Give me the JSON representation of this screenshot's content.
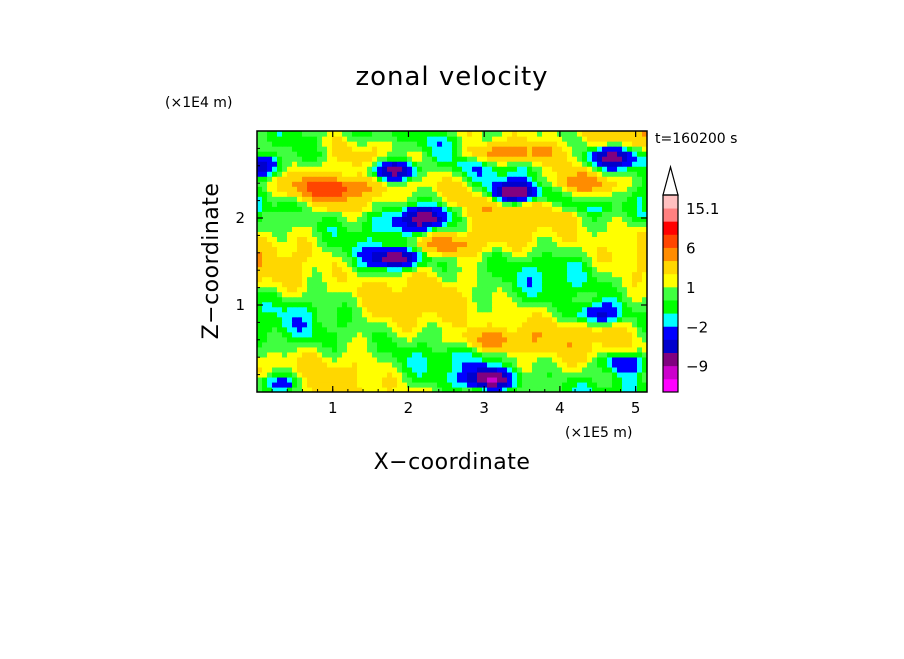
{
  "chart_data": {
    "type": "heatmap",
    "subtype": "filled-contour",
    "title": "zonal velocity",
    "xlabel": "X−coordinate",
    "ylabel": "Z−coordinate",
    "x_scale_label": "(×1E5 m)",
    "y_scale_label": "(×1E4 m)",
    "time_label": "t=160200 s",
    "xlim": [
      0,
      5.15
    ],
    "ylim": [
      0,
      3.0
    ],
    "xticks": [
      1,
      2,
      3,
      4,
      5
    ],
    "xtick_labels": [
      "1",
      "2",
      "3",
      "4",
      "5"
    ],
    "yticks": [
      1,
      2
    ],
    "ytick_labels": [
      "1",
      "2"
    ],
    "colorbar": {
      "extend": "max",
      "levels": [
        -15,
        -12,
        -9,
        -6,
        -4,
        -2,
        -1,
        0,
        1,
        2,
        4,
        6,
        9,
        12,
        15.1
      ],
      "colors": [
        "#ff00ff",
        "#cc00cc",
        "#800080",
        "#0000cd",
        "#0000ff",
        "#00ffff",
        "#00ff00",
        "#40ff40",
        "#ffff00",
        "#ffd700",
        "#ff8c00",
        "#ff4500",
        "#ff0000",
        "#ff8080",
        "#ffc0c0"
      ],
      "tick_labels": [
        "15.1",
        "6",
        "1",
        "−2",
        "−9"
      ],
      "tick_values": [
        15.1,
        6,
        1,
        -2,
        -9
      ]
    },
    "features": [
      {
        "kind": "jet-negative",
        "x": 3.4,
        "z": 2.3,
        "value": -10
      },
      {
        "kind": "jet-negative",
        "x": 2.2,
        "z": 2.0,
        "value": -9
      },
      {
        "kind": "jet-negative",
        "x": 4.7,
        "z": 2.7,
        "value": -9
      },
      {
        "kind": "jet-negative",
        "x": 1.8,
        "z": 2.55,
        "value": -9
      },
      {
        "kind": "jet-negative",
        "x": 1.8,
        "z": 1.55,
        "value": -8
      },
      {
        "kind": "jet-negative",
        "x": 0.05,
        "z": 2.6,
        "value": -6
      },
      {
        "kind": "jet-negative",
        "x": 3.05,
        "z": 0.15,
        "value": -9
      },
      {
        "kind": "jet-negative",
        "x": 4.5,
        "z": 0.9,
        "value": -6
      },
      {
        "kind": "jet-negative",
        "x": 4.85,
        "z": 0.35,
        "value": -5
      },
      {
        "kind": "jet-negative",
        "x": 0.3,
        "z": 0.1,
        "value": -5
      },
      {
        "kind": "jet-positive",
        "x": 3.2,
        "z": 2.75,
        "value": 6
      },
      {
        "kind": "jet-positive",
        "x": 1.0,
        "z": 2.35,
        "value": 5
      },
      {
        "kind": "jet-positive",
        "x": 2.4,
        "z": 1.7,
        "value": 5
      },
      {
        "kind": "jet-positive",
        "x": 3.1,
        "z": 0.6,
        "value": 4
      },
      {
        "kind": "jet-positive",
        "x": 4.3,
        "z": 2.4,
        "value": 4
      }
    ]
  }
}
